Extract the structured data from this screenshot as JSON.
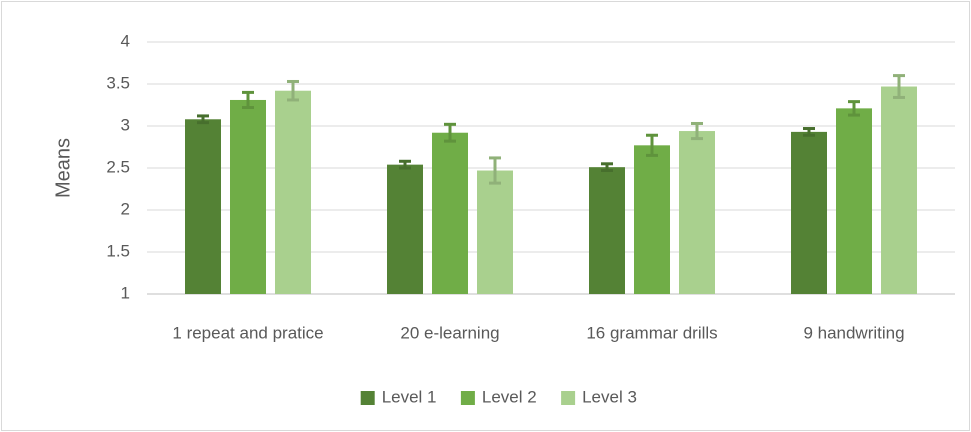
{
  "chart_data": {
    "type": "bar",
    "y_label": "Means",
    "categories": [
      "1 repeat and pratice",
      "20 e-learning",
      "16 grammar drills",
      "9 handwriting"
    ],
    "series": [
      {
        "name": "Level 1",
        "color": "#548235",
        "values": [
          3.08,
          2.54,
          2.51,
          2.93
        ],
        "errors": [
          0.04,
          0.04,
          0.04,
          0.04
        ]
      },
      {
        "name": "Level 2",
        "color": "#70ad47",
        "values": [
          3.31,
          2.92,
          2.77,
          3.21
        ],
        "errors": [
          0.09,
          0.1,
          0.12,
          0.08
        ]
      },
      {
        "name": "Level 3",
        "color": "#a9d08e",
        "values": [
          3.42,
          2.47,
          2.94,
          3.47
        ],
        "errors": [
          0.11,
          0.15,
          0.09,
          0.13
        ]
      }
    ],
    "ylim": [
      1,
      4
    ],
    "yticks": [
      1,
      1.5,
      2,
      2.5,
      3,
      3.5,
      4
    ],
    "grid": true,
    "legend": "bottom"
  }
}
